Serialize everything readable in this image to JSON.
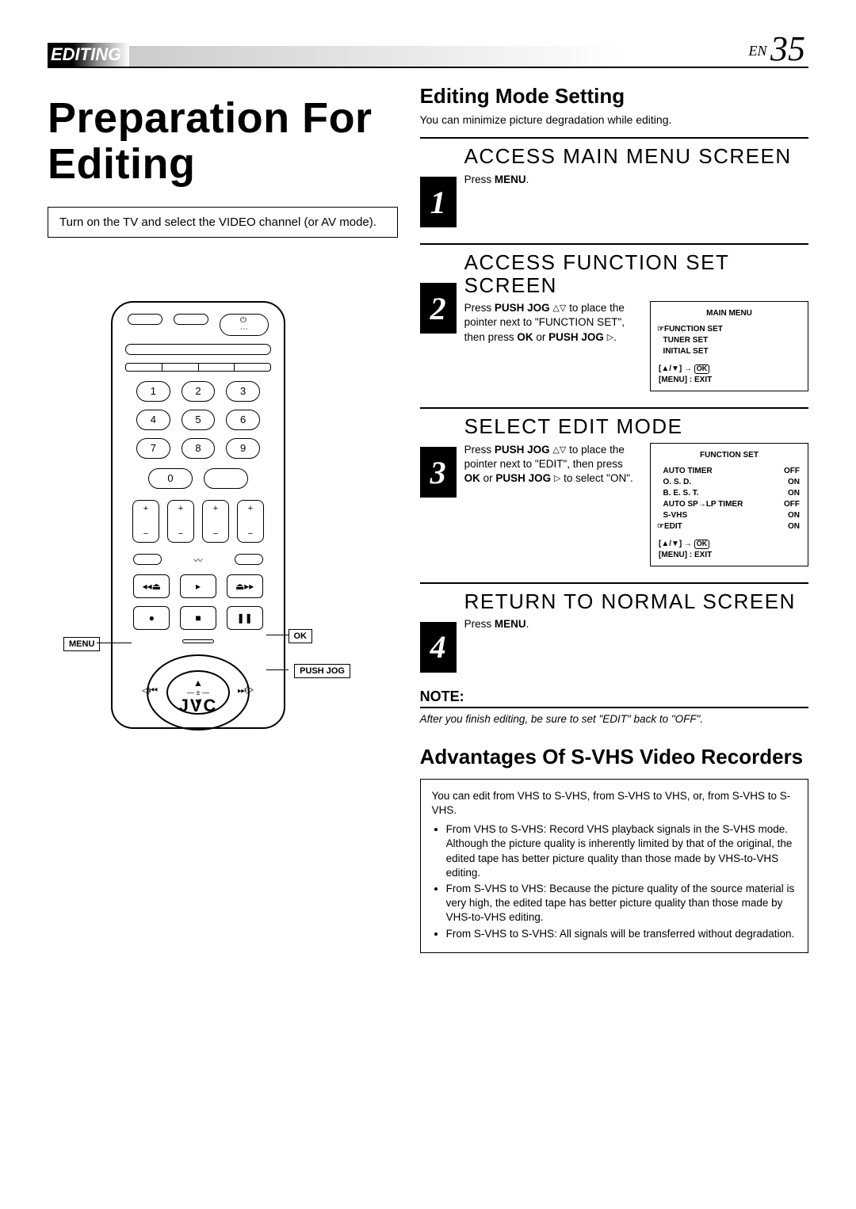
{
  "header": {
    "section_label": "EDITING",
    "lang": "EN",
    "page_no": "35"
  },
  "left": {
    "main_title": "Preparation For Editing",
    "inset_text": "Turn on the TV and select the VIDEO channel (or AV mode).",
    "callouts": {
      "menu": "MENU",
      "ok": "OK",
      "push_jog": "PUSH JOG"
    },
    "remote_brand": "JVC"
  },
  "right": {
    "mode_title": "Editing Mode Setting",
    "mode_sub": "You can minimize picture degradation while editing.",
    "steps": [
      {
        "no": "1",
        "head": "ACCESS MAIN MENU SCREEN",
        "text_html": "Press <b>MENU</b>."
      },
      {
        "no": "2",
        "head": "ACCESS FUNCTION SET SCREEN",
        "text_html": "Press <b>PUSH JOG</b> <span class='tri'>△▽</span> to place the pointer next to \"FUNCTION SET\", then press <b>OK</b> or  <b>PUSH JOG</b> <span class='tri'>▷</span>.",
        "screen": {
          "title": "MAIN MENU",
          "lines": [
            {
              "ptr": true,
              "l": "FUNCTION SET",
              "r": ""
            },
            {
              "ptr": false,
              "l": "TUNER SET",
              "r": ""
            },
            {
              "ptr": false,
              "l": "INITIAL SET",
              "r": ""
            }
          ],
          "footer": "[▲/▼] → OK<br>[MENU] : EXIT"
        }
      },
      {
        "no": "3",
        "head": "SELECT EDIT MODE",
        "text_html": "Press <b>PUSH JOG</b> <span class='tri'>△▽</span> to place the pointer next to \"EDIT\", then press <b>OK</b> or <b>PUSH JOG</b> <span class='tri'>▷</span> to select \"ON\".",
        "screen": {
          "title": "FUNCTION SET",
          "lines": [
            {
              "ptr": false,
              "l": "AUTO TIMER",
              "r": "OFF"
            },
            {
              "ptr": false,
              "l": "O. S. D.",
              "r": "ON"
            },
            {
              "ptr": false,
              "l": "B. E. S. T.",
              "r": "ON"
            },
            {
              "ptr": false,
              "l": "AUTO SP→LP TIMER",
              "r": "OFF"
            },
            {
              "ptr": false,
              "l": "S-VHS",
              "r": "ON"
            },
            {
              "ptr": true,
              "l": "EDIT",
              "r": "ON"
            }
          ],
          "footer": "[▲/▼] → OK<br>[MENU] : EXIT"
        }
      },
      {
        "no": "4",
        "head": "RETURN TO NORMAL SCREEN",
        "text_html": "Press <b>MENU</b>."
      }
    ],
    "note_h": "NOTE:",
    "note_text": "After you finish editing, be sure to set \"EDIT\" back to \"OFF\".",
    "adv_title": "Advantages Of S-VHS Video Recorders",
    "adv_intro": "You can edit from VHS to S-VHS, from S-VHS to VHS, or, from S-VHS to S-VHS.",
    "adv_bullets": [
      "From VHS to S-VHS: Record VHS playback signals in the S-VHS mode. Although the picture quality is inherently limited by that of the original, the edited tape has better picture quality than those made by VHS-to-VHS editing.",
      "From S-VHS to VHS: Because the picture quality of the source material is very high, the edited tape has better picture quality than those made by VHS-to-VHS editing.",
      "From S-VHS to S-VHS: All signals will be transferred without degradation."
    ]
  }
}
